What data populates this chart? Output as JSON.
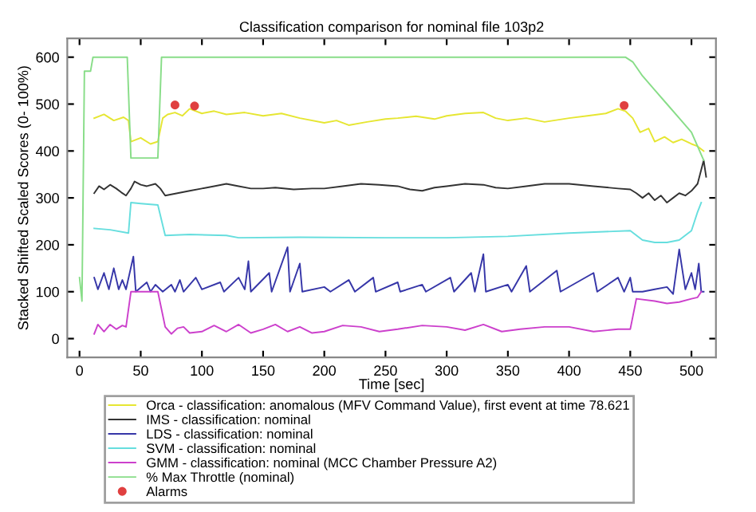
{
  "chart_data": {
    "type": "line",
    "title": "Classification comparison for nominal file 103p2",
    "xlabel": "Time [sec]",
    "ylabel": "Stacked Shifted Scaled Scores (0- 100%)",
    "xlim": [
      -10,
      520
    ],
    "ylim": [
      -40,
      640
    ],
    "xticks": [
      0,
      50,
      100,
      150,
      200,
      250,
      300,
      350,
      400,
      450,
      500
    ],
    "yticks": [
      0,
      100,
      200,
      300,
      400,
      500,
      600
    ],
    "grid": false,
    "legend": "bottom",
    "marker": "none",
    "line_style": "solid",
    "series": [
      {
        "name": "Orca - classification: anomalous (MFV Command Value), first event at time 78.621",
        "color": "#e6e632",
        "x": [
          12,
          20,
          28,
          36,
          40,
          42,
          50,
          58,
          64,
          68,
          72,
          78,
          84,
          90,
          100,
          110,
          120,
          135,
          150,
          165,
          180,
          200,
          210,
          220,
          235,
          250,
          260,
          275,
          290,
          300,
          315,
          330,
          340,
          350,
          365,
          380,
          400,
          415,
          430,
          440,
          446,
          452,
          458,
          465,
          470,
          478,
          485,
          492,
          500,
          505,
          510
        ],
        "values": [
          470,
          478,
          465,
          472,
          465,
          420,
          428,
          415,
          420,
          470,
          478,
          482,
          475,
          490,
          480,
          485,
          478,
          482,
          475,
          480,
          470,
          460,
          465,
          455,
          462,
          468,
          470,
          474,
          468,
          475,
          480,
          482,
          470,
          465,
          470,
          462,
          470,
          475,
          480,
          490,
          485,
          470,
          440,
          448,
          420,
          430,
          418,
          425,
          415,
          410,
          400
        ]
      },
      {
        "name": "IMS - classification: nominal",
        "color": "#333333",
        "x": [
          12,
          16,
          20,
          25,
          30,
          34,
          38,
          42,
          45,
          50,
          55,
          62,
          66,
          70,
          80,
          90,
          100,
          110,
          120,
          130,
          140,
          150,
          160,
          175,
          190,
          200,
          215,
          230,
          245,
          260,
          270,
          280,
          290,
          300,
          315,
          330,
          340,
          350,
          365,
          380,
          400,
          420,
          440,
          450,
          455,
          460,
          465,
          470,
          475,
          480,
          485,
          490,
          495,
          500,
          505,
          508,
          510,
          512
        ],
        "values": [
          310,
          325,
          318,
          328,
          320,
          312,
          305,
          320,
          335,
          328,
          325,
          330,
          320,
          305,
          310,
          315,
          320,
          325,
          330,
          325,
          320,
          320,
          322,
          318,
          320,
          320,
          325,
          330,
          328,
          325,
          318,
          315,
          322,
          325,
          330,
          328,
          322,
          320,
          325,
          330,
          330,
          325,
          320,
          318,
          310,
          300,
          310,
          295,
          305,
          290,
          300,
          310,
          305,
          315,
          330,
          360,
          380,
          345
        ]
      },
      {
        "name": "LDS - classification: nominal",
        "color": "#3636a8",
        "x": [
          12,
          15,
          20,
          24,
          28,
          32,
          35,
          38,
          44,
          46,
          55,
          58,
          62,
          68,
          75,
          78,
          82,
          85,
          95,
          100,
          115,
          118,
          130,
          135,
          138,
          140,
          155,
          157,
          170,
          172,
          180,
          182,
          200,
          205,
          220,
          225,
          240,
          242,
          260,
          262,
          280,
          283,
          303,
          306,
          320,
          323,
          330,
          332,
          350,
          353,
          365,
          368,
          390,
          393,
          420,
          423,
          440,
          445,
          450,
          452,
          460,
          470,
          480,
          485,
          490,
          495,
          500,
          503,
          506,
          508,
          510
        ],
        "values": [
          130,
          105,
          140,
          105,
          150,
          105,
          125,
          105,
          175,
          100,
          120,
          100,
          115,
          100,
          115,
          100,
          125,
          100,
          130,
          105,
          120,
          100,
          130,
          105,
          165,
          100,
          140,
          100,
          195,
          100,
          160,
          100,
          110,
          100,
          125,
          100,
          130,
          100,
          120,
          100,
          115,
          100,
          130,
          100,
          140,
          100,
          180,
          100,
          115,
          100,
          155,
          100,
          145,
          100,
          140,
          100,
          130,
          100,
          130,
          100,
          100,
          105,
          110,
          95,
          190,
          105,
          140,
          105,
          160,
          100,
          100
        ]
      },
      {
        "name": "SVM - classification: nominal",
        "color": "#66dede",
        "x": [
          12,
          25,
          40,
          42,
          50,
          64,
          70,
          90,
          120,
          130,
          180,
          250,
          300,
          350,
          400,
          450,
          460,
          470,
          480,
          490,
          500,
          505,
          508
        ],
        "values": [
          235,
          232,
          225,
          290,
          288,
          285,
          220,
          222,
          220,
          215,
          216,
          215,
          215,
          218,
          225,
          230,
          210,
          205,
          205,
          210,
          230,
          270,
          290
        ]
      },
      {
        "name": "GMM - classification: nominal (MCC Chamber Pressure A2)",
        "color": "#cc40cc",
        "x": [
          12,
          15,
          20,
          25,
          30,
          35,
          38,
          42,
          50,
          64,
          70,
          75,
          80,
          85,
          90,
          100,
          110,
          120,
          130,
          140,
          150,
          160,
          170,
          180,
          190,
          200,
          215,
          230,
          245,
          260,
          280,
          300,
          315,
          330,
          345,
          360,
          380,
          400,
          420,
          440,
          450,
          455,
          470,
          480,
          490,
          500,
          505,
          508
        ],
        "values": [
          10,
          30,
          15,
          30,
          20,
          28,
          25,
          100,
          100,
          100,
          25,
          10,
          22,
          25,
          12,
          15,
          28,
          15,
          30,
          12,
          20,
          30,
          15,
          25,
          12,
          15,
          28,
          25,
          15,
          20,
          28,
          25,
          18,
          30,
          15,
          20,
          25,
          25,
          15,
          20,
          20,
          85,
          80,
          75,
          78,
          85,
          88,
          100
        ]
      },
      {
        "name": "% Max Throttle (nominal)",
        "color": "#88dd88",
        "x": [
          0,
          2,
          4,
          9,
          11,
          39,
          42,
          64,
          67,
          446,
          452,
          460,
          470,
          480,
          490,
          500,
          505,
          510
        ],
        "values": [
          130,
          80,
          570,
          570,
          600,
          600,
          385,
          385,
          600,
          600,
          590,
          560,
          530,
          500,
          470,
          440,
          410,
          380
        ]
      },
      {
        "name": "Alarms",
        "type": "scatter",
        "marker": "circle",
        "color": "#e04040",
        "x": [
          78,
          94,
          445
        ],
        "values": [
          498,
          496,
          497
        ]
      }
    ]
  }
}
